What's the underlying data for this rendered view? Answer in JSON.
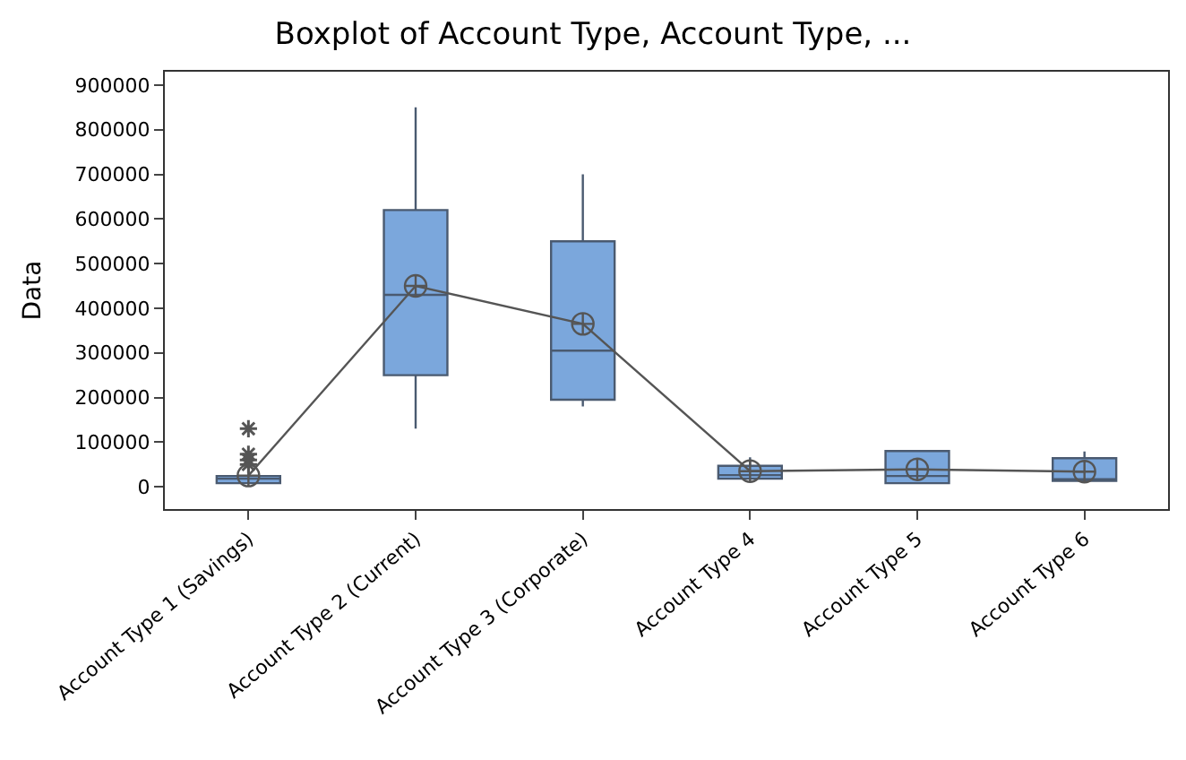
{
  "chart_data": {
    "type": "box",
    "title": "Boxplot of Account Type, Account Type, ...",
    "ylabel": "Data",
    "categories": [
      "Account Type 1 (Savings)",
      "Account Type 2 (Current)",
      "Account Type 3 (Corporate)",
      "Account Type 4",
      "Account Type 5",
      "Account Type 6"
    ],
    "color": "#7ba7dc",
    "series": [
      {
        "type": "line",
        "color": "#555555",
        "marker": "cross",
        "values": [
          25000,
          450000,
          365000,
          35000,
          39000,
          34000
        ]
      }
    ],
    "boxes": [
      {
        "low": 8000,
        "q1": 8000,
        "median": 18000,
        "q3": 24000,
        "high": 40000,
        "outliers": [
          50000,
          60000,
          73000,
          130000
        ]
      },
      {
        "low": 130000,
        "q1": 250000,
        "median": 430000,
        "q3": 620000,
        "high": 850000
      },
      {
        "low": 180000,
        "q1": 195000,
        "median": 305000,
        "q3": 550000,
        "high": 700000
      },
      {
        "low": 18000,
        "q1": 18000,
        "median": 26000,
        "q3": 47000,
        "high": 66000
      },
      {
        "low": 8000,
        "q1": 8000,
        "median": 24000,
        "q3": 80000,
        "high": 80000
      },
      {
        "low": 13000,
        "q1": 13000,
        "median": 17000,
        "q3": 64000,
        "high": 79000
      }
    ],
    "ylim": [
      -50000,
      930000
    ],
    "yticks": [
      0,
      100000,
      200000,
      300000,
      400000,
      500000,
      600000,
      700000,
      800000,
      900000
    ]
  }
}
